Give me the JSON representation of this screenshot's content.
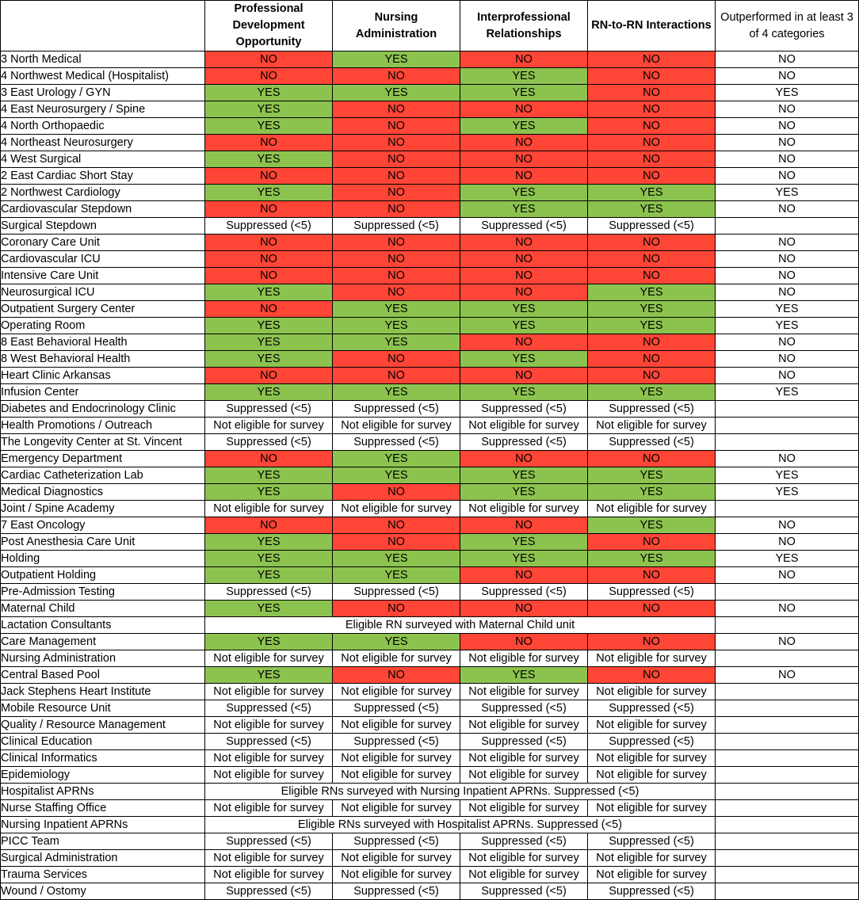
{
  "colors": {
    "yes": "#8cc34f",
    "no": "#ff4536",
    "grid": "#000000"
  },
  "headers": [
    "",
    "Professional Development Opportunity",
    "Nursing Administration",
    "Interprofessional Relationships",
    "RN-to-RN Interactions",
    "Outperformed in at least 3 of 4 categories"
  ],
  "rows": [
    {
      "unit": "3 North Medical",
      "cells": [
        "NO",
        "YES",
        "NO",
        "NO",
        "NO"
      ]
    },
    {
      "unit": "4 Northwest Medical (Hospitalist)",
      "cells": [
        "NO",
        "NO",
        "YES",
        "NO",
        "NO"
      ]
    },
    {
      "unit": "3 East Urology / GYN",
      "cells": [
        "YES",
        "YES",
        "YES",
        "NO",
        "YES"
      ]
    },
    {
      "unit": "4 East Neurosurgery / Spine",
      "cells": [
        "YES",
        "NO",
        "NO",
        "NO",
        "NO"
      ]
    },
    {
      "unit": "4 North Orthopaedic",
      "cells": [
        "YES",
        "NO",
        "YES",
        "NO",
        "NO"
      ]
    },
    {
      "unit": "4 Northeast Neurosurgery",
      "cells": [
        "NO",
        "NO",
        "NO",
        "NO",
        "NO"
      ]
    },
    {
      "unit": "4 West Surgical",
      "cells": [
        "YES",
        "NO",
        "NO",
        "NO",
        "NO"
      ]
    },
    {
      "unit": "2 East Cardiac Short Stay",
      "cells": [
        "NO",
        "NO",
        "NO",
        "NO",
        "NO"
      ]
    },
    {
      "unit": "2 Northwest Cardiology",
      "cells": [
        "YES",
        "NO",
        "YES",
        "YES",
        "YES"
      ]
    },
    {
      "unit": "Cardiovascular Stepdown",
      "cells": [
        "NO",
        "NO",
        "YES",
        "YES",
        "NO"
      ]
    },
    {
      "unit": "Surgical Stepdown",
      "cells": [
        "Suppressed (<5)",
        "Suppressed (<5)",
        "Suppressed (<5)",
        "Suppressed (<5)",
        ""
      ]
    },
    {
      "unit": "Coronary Care Unit",
      "cells": [
        "NO",
        "NO",
        "NO",
        "NO",
        "NO"
      ]
    },
    {
      "unit": "Cardiovascular ICU",
      "cells": [
        "NO",
        "NO",
        "NO",
        "NO",
        "NO"
      ]
    },
    {
      "unit": "Intensive Care Unit",
      "cells": [
        "NO",
        "NO",
        "NO",
        "NO",
        "NO"
      ]
    },
    {
      "unit": "Neurosurgical ICU",
      "cells": [
        "YES",
        "NO",
        "NO",
        "YES",
        "NO"
      ]
    },
    {
      "unit": "Outpatient Surgery Center",
      "cells": [
        "NO",
        "YES",
        "YES",
        "YES",
        "YES"
      ]
    },
    {
      "unit": "Operating Room",
      "cells": [
        "YES",
        "YES",
        "YES",
        "YES",
        "YES"
      ]
    },
    {
      "unit": "8 East Behavioral Health",
      "cells": [
        "YES",
        "YES",
        "NO",
        "NO",
        "NO"
      ]
    },
    {
      "unit": "8 West Behavioral Health",
      "cells": [
        "YES",
        "NO",
        "YES",
        "NO",
        "NO"
      ]
    },
    {
      "unit": "Heart Clinic Arkansas",
      "cells": [
        "NO",
        "NO",
        "NO",
        "NO",
        "NO"
      ]
    },
    {
      "unit": "Infusion Center",
      "cells": [
        "YES",
        "YES",
        "YES",
        "YES",
        "YES"
      ]
    },
    {
      "unit": "Diabetes and Endocrinology Clinic",
      "cells": [
        "Suppressed (<5)",
        "Suppressed (<5)",
        "Suppressed (<5)",
        "Suppressed (<5)",
        ""
      ]
    },
    {
      "unit": "Health Promotions / Outreach",
      "cells": [
        "Not eligible for survey",
        "Not eligible for survey",
        "Not eligible for survey",
        "Not eligible for survey",
        ""
      ]
    },
    {
      "unit": "The Longevity Center at St. Vincent",
      "cells": [
        "Suppressed (<5)",
        "Suppressed (<5)",
        "Suppressed (<5)",
        "Suppressed (<5)",
        ""
      ]
    },
    {
      "unit": "Emergency Department",
      "cells": [
        "NO",
        "YES",
        "NO",
        "NO",
        "NO"
      ]
    },
    {
      "unit": "Cardiac Catheterization Lab",
      "cells": [
        "YES",
        "YES",
        "YES",
        "YES",
        "YES"
      ]
    },
    {
      "unit": "Medical Diagnostics",
      "cells": [
        "YES",
        "NO",
        "YES",
        "YES",
        "YES"
      ]
    },
    {
      "unit": "Joint / Spine Academy",
      "cells": [
        "Not eligible for survey",
        "Not eligible for survey",
        "Not eligible for survey",
        "Not eligible for survey",
        ""
      ]
    },
    {
      "unit": "7 East Oncology",
      "cells": [
        "NO",
        "NO",
        "NO",
        "YES",
        "NO"
      ]
    },
    {
      "unit": "Post Anesthesia Care Unit",
      "cells": [
        "YES",
        "NO",
        "YES",
        "NO",
        "NO"
      ]
    },
    {
      "unit": "Holding",
      "cells": [
        "YES",
        "YES",
        "YES",
        "YES",
        "YES"
      ]
    },
    {
      "unit": "Outpatient Holding",
      "cells": [
        "YES",
        "YES",
        "NO",
        "NO",
        "NO"
      ]
    },
    {
      "unit": "Pre-Admission Testing",
      "cells": [
        "Suppressed (<5)",
        "Suppressed (<5)",
        "Suppressed (<5)",
        "Suppressed (<5)",
        ""
      ]
    },
    {
      "unit": "Maternal Child",
      "cells": [
        "YES",
        "NO",
        "NO",
        "NO",
        "NO"
      ]
    },
    {
      "unit": "Lactation Consultants",
      "merged": "Eligible RN surveyed with Maternal Child unit"
    },
    {
      "unit": "Care Management",
      "cells": [
        "YES",
        "YES",
        "NO",
        "NO",
        "NO"
      ]
    },
    {
      "unit": "Nursing Administration",
      "cells": [
        "Not eligible for survey",
        "Not eligible for survey",
        "Not eligible for survey",
        "Not eligible for survey",
        ""
      ]
    },
    {
      "unit": "Central Based Pool",
      "cells": [
        "YES",
        "NO",
        "YES",
        "NO",
        "NO"
      ]
    },
    {
      "unit": "Jack Stephens Heart Institute",
      "cells": [
        "Not eligible for survey",
        "Not eligible for survey",
        "Not eligible for survey",
        "Not eligible for survey",
        ""
      ]
    },
    {
      "unit": "Mobile Resource Unit",
      "cells": [
        "Suppressed (<5)",
        "Suppressed (<5)",
        "Suppressed (<5)",
        "Suppressed (<5)",
        ""
      ]
    },
    {
      "unit": "Quality / Resource Management",
      "cells": [
        "Not eligible for survey",
        "Not eligible for survey",
        "Not eligible for survey",
        "Not eligible for survey",
        ""
      ]
    },
    {
      "unit": "Clinical Education",
      "cells": [
        "Suppressed (<5)",
        "Suppressed (<5)",
        "Suppressed (<5)",
        "Suppressed (<5)",
        ""
      ]
    },
    {
      "unit": "Clinical Informatics",
      "cells": [
        "Not eligible for survey",
        "Not eligible for survey",
        "Not eligible for survey",
        "Not eligible for survey",
        ""
      ]
    },
    {
      "unit": "Epidemiology",
      "cells": [
        "Not eligible for survey",
        "Not eligible for survey",
        "Not eligible for survey",
        "Not eligible for survey",
        ""
      ]
    },
    {
      "unit": "Hospitalist APRNs",
      "merged": "Eligible RNs surveyed with Nursing Inpatient APRNs. Suppressed (<5)"
    },
    {
      "unit": "Nurse Staffing Office",
      "cells": [
        "Not eligible for survey",
        "Not eligible for survey",
        "Not eligible for survey",
        "Not eligible for survey",
        ""
      ]
    },
    {
      "unit": "Nursing Inpatient APRNs",
      "merged": "Eligible RNs surveyed with Hospitalist APRNs. Suppressed (<5)"
    },
    {
      "unit": "PICC Team",
      "cells": [
        "Suppressed (<5)",
        "Suppressed (<5)",
        "Suppressed (<5)",
        "Suppressed (<5)",
        ""
      ]
    },
    {
      "unit": "Surgical Administration",
      "cells": [
        "Not eligible for survey",
        "Not eligible for survey",
        "Not eligible for survey",
        "Not eligible for survey",
        ""
      ]
    },
    {
      "unit": "Trauma Services",
      "cells": [
        "Not eligible for survey",
        "Not eligible for survey",
        "Not eligible for survey",
        "Not eligible for survey",
        ""
      ]
    },
    {
      "unit": "Wound / Ostomy",
      "cells": [
        "Suppressed (<5)",
        "Suppressed (<5)",
        "Suppressed (<5)",
        "Suppressed (<5)",
        ""
      ]
    }
  ]
}
